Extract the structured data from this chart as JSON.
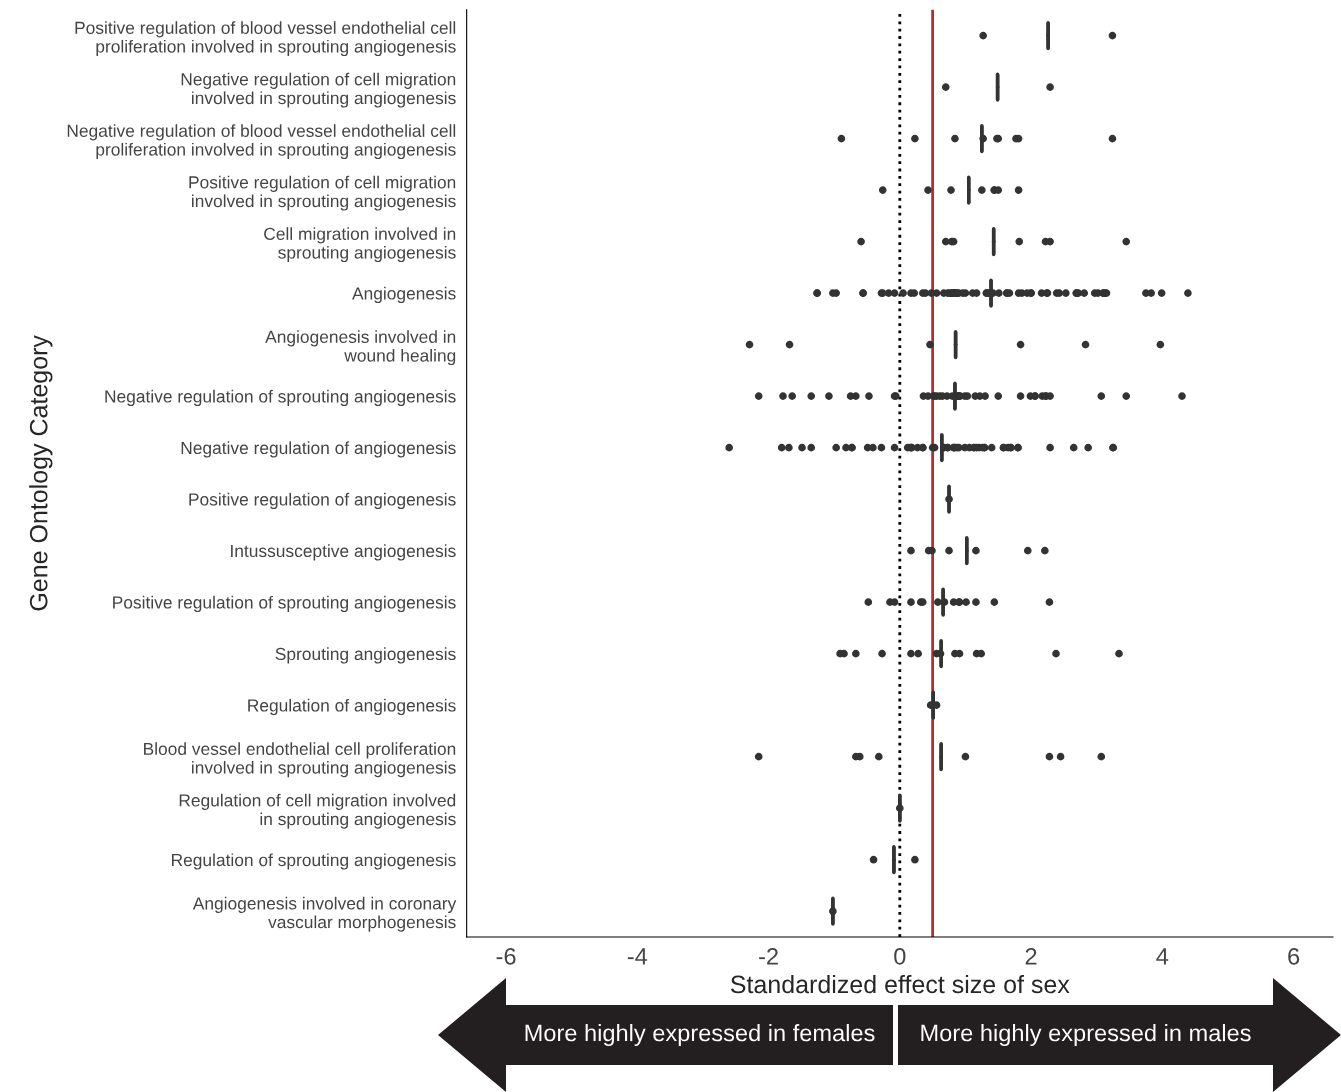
{
  "chart_data": {
    "type": "box",
    "orientation": "horizontal",
    "xlabel": "Standardized effect size of sex",
    "ylabel": "Gene Ontology Category",
    "categories": [
      "Positive regulation of blood vessel endothelial cell\nproliferation involved in sprouting angiogenesis",
      "Negative regulation of cell migration\ninvolved in sprouting angiogenesis",
      "Negative regulation of blood vessel endothelial cell\nproliferation involved in sprouting angiogenesis",
      "Positive regulation of cell migration\ninvolved in sprouting angiogenesis",
      "Cell migration involved in\nsprouting angiogenesis",
      "Angiogenesis",
      "Angiogenesis involved in\nwound healing",
      "Negative regulation of sprouting angiogenesis",
      "Negative regulation of angiogenesis",
      "Positive regulation of angiogenesis",
      "Intussusceptive angiogenesis",
      "Positive regulation of sprouting angiogenesis",
      "Sprouting angiogenesis",
      "Regulation of angiogenesis",
      "Blood vessel endothelial cell proliferation\ninvolved in sprouting angiogenesis",
      "Regulation of cell migration involved\nin sprouting angiogenesis",
      "Regulation of sprouting angiogenesis",
      "Angiogenesis involved in coronary\nvascular morphogenesis"
    ],
    "color": "#333333",
    "boxes": [
      {
        "low": 2.26,
        "q1": 2.26,
        "median": 2.26,
        "q3": 2.26,
        "high": 2.26,
        "outliers": [
          1.27,
          3.24
        ]
      },
      {
        "low": 1.49,
        "q1": 1.49,
        "median": 1.49,
        "q3": 1.49,
        "high": 1.49,
        "outliers": [
          0.7,
          2.29
        ]
      },
      {
        "low": 1.25,
        "q1": 1.25,
        "median": 1.25,
        "q3": 1.25,
        "high": 1.25,
        "outliers": [
          -0.89,
          0.23,
          0.84,
          1.27,
          1.48,
          1.5,
          1.77,
          1.81,
          3.24
        ]
      },
      {
        "low": 1.05,
        "q1": 1.05,
        "median": 1.05,
        "q3": 1.05,
        "high": 1.05,
        "outliers": [
          -0.26,
          0.43,
          0.78,
          1.25,
          1.44,
          1.44,
          1.5,
          1.81
        ]
      },
      {
        "low": 1.43,
        "q1": 1.43,
        "median": 1.43,
        "q3": 1.43,
        "high": 1.43,
        "outliers": [
          -0.59,
          0.7,
          0.79,
          0.82,
          1.82,
          2.22,
          2.29,
          3.45
        ]
      },
      {
        "low": 1.39,
        "q1": 1.39,
        "median": 1.39,
        "q3": 1.39,
        "high": 1.39,
        "outliers": [
          -1.26,
          -1.26,
          -0.97,
          -1.02,
          -0.56,
          -0.56,
          -0.26,
          -0.28,
          -0.17,
          -0.08,
          0.05,
          0.17,
          0.22,
          0.35,
          0.39,
          0.48,
          0.56,
          0.67,
          0.73,
          0.76,
          0.78,
          0.81,
          0.81,
          0.81,
          0.84,
          0.84,
          0.87,
          0.87,
          0.9,
          0.96,
          1.0,
          1.11,
          1.17,
          1.32,
          1.32,
          1.36,
          1.36,
          1.42,
          1.51,
          1.63,
          1.63,
          1.67,
          1.81,
          1.86,
          1.94,
          2.0,
          2.0,
          2.16,
          2.24,
          2.25,
          2.39,
          2.43,
          2.53,
          2.69,
          2.69,
          2.72,
          2.81,
          2.97,
          3.02,
          3.1,
          3.1,
          3.13,
          3.15,
          3.75,
          3.83,
          3.99,
          4.39
        ]
      },
      {
        "low": 0.85,
        "q1": 0.85,
        "median": 0.85,
        "q3": 0.85,
        "high": 0.85,
        "outliers": [
          -2.29,
          -1.68,
          0.46,
          1.84,
          2.83,
          3.97
        ]
      },
      {
        "low": 0.84,
        "q1": 0.84,
        "median": 0.84,
        "q3": 0.84,
        "high": 0.84,
        "outliers": [
          -2.15,
          -1.78,
          -1.64,
          -1.35,
          -1.08,
          -0.75,
          -0.67,
          -0.47,
          -0.08,
          -0.06,
          0.36,
          0.43,
          0.51,
          0.53,
          0.56,
          0.61,
          0.65,
          0.72,
          0.8,
          0.86,
          0.9,
          0.9,
          0.9,
          0.92,
          0.99,
          1.03,
          1.15,
          1.22,
          1.3,
          1.5,
          1.84,
          1.99,
          2.06,
          2.06,
          2.17,
          2.22,
          2.23,
          2.29,
          3.07,
          3.45,
          4.3
        ]
      },
      {
        "low": 0.64,
        "q1": 0.64,
        "median": 0.64,
        "q3": 0.64,
        "high": 0.64,
        "outliers": [
          -2.6,
          -1.8,
          -1.69,
          -1.49,
          -1.35,
          -0.97,
          -0.82,
          -0.73,
          -0.73,
          -0.49,
          -0.41,
          -0.28,
          -0.08,
          0.12,
          0.16,
          0.18,
          0.18,
          0.27,
          0.35,
          0.35,
          0.5,
          0.53,
          0.67,
          0.67,
          0.73,
          0.73,
          0.82,
          0.82,
          0.84,
          0.87,
          0.9,
          0.99,
          1.06,
          1.13,
          1.13,
          1.17,
          1.21,
          1.26,
          1.29,
          1.29,
          1.4,
          1.58,
          1.58,
          1.65,
          1.69,
          1.69,
          1.8,
          1.8,
          2.29,
          2.65,
          2.87,
          3.25,
          3.25
        ]
      },
      {
        "low": 0.75,
        "q1": 0.75,
        "median": 0.75,
        "q3": 0.75,
        "high": 0.75,
        "outliers": [
          0.75
        ]
      },
      {
        "low": 1.02,
        "q1": 1.02,
        "median": 1.02,
        "q3": 1.02,
        "high": 1.02,
        "outliers": [
          0.17,
          0.44,
          0.49,
          0.75,
          1.16,
          1.95,
          2.21
        ]
      },
      {
        "low": 0.66,
        "q1": 0.66,
        "median": 0.66,
        "q3": 0.66,
        "high": 0.66,
        "outliers": [
          -0.48,
          -0.15,
          -0.08,
          0.17,
          0.32,
          0.35,
          0.58,
          0.68,
          0.82,
          0.9,
          0.91,
          1.01,
          1.16,
          1.44,
          2.28
        ]
      },
      {
        "low": 0.63,
        "q1": 0.63,
        "median": 0.63,
        "q3": 0.63,
        "high": 0.63,
        "outliers": [
          -0.91,
          -0.85,
          -0.67,
          -0.27,
          0.17,
          0.28,
          0.56,
          0.62,
          0.84,
          0.91,
          1.17,
          1.24,
          2.38,
          3.34
        ]
      },
      {
        "low": 0.51,
        "q1": 0.51,
        "median": 0.51,
        "q3": 0.51,
        "high": 0.51,
        "outliers": [
          0.47,
          0.56
        ]
      },
      {
        "low": 0.63,
        "q1": 0.63,
        "median": 0.63,
        "q3": 0.63,
        "high": 0.63,
        "outliers": [
          -2.15,
          -0.67,
          -0.61,
          -0.32,
          1.0,
          2.28,
          2.45,
          3.07
        ]
      },
      {
        "low": 0.0,
        "q1": 0.0,
        "median": 0.0,
        "q3": 0.0,
        "high": 0.0,
        "outliers": [
          0.0
        ]
      },
      {
        "low": -0.09,
        "q1": -0.09,
        "median": -0.09,
        "q3": -0.09,
        "high": -0.09,
        "outliers": [
          -0.4,
          0.23
        ]
      },
      {
        "low": -1.02,
        "q1": -1.02,
        "median": -1.02,
        "q3": -1.02,
        "high": -1.02,
        "outliers": [
          -1.02
        ]
      }
    ],
    "xlim": [
      -6.6,
      6.6
    ],
    "xticks": [
      -6,
      -4,
      -2,
      0,
      2,
      4,
      6
    ],
    "grid": false,
    "ref_lines": [
      {
        "axis": "x",
        "value": 0,
        "color": "#000000",
        "line_style": "dotted"
      },
      {
        "axis": "x",
        "value": 0.5,
        "color": "#b03030",
        "line_style": "solid"
      }
    ],
    "annotations": [
      "More highly expressed in females",
      "More highly expressed in males"
    ]
  }
}
